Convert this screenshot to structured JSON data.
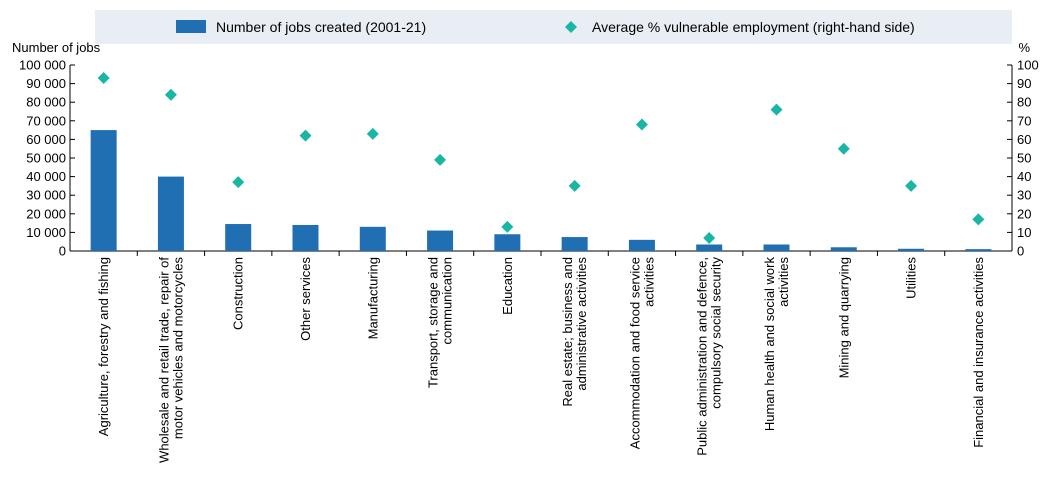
{
  "chart_data": {
    "type": "bar",
    "categories": [
      [
        "Agriculture, forestry and fishing"
      ],
      [
        "Wholesale and retail trade, repair of",
        "motor vehicles and motorcycles"
      ],
      [
        "Construction"
      ],
      [
        "Other services"
      ],
      [
        "Manufacturing"
      ],
      [
        "Transport, storage and",
        "communication"
      ],
      [
        "Education"
      ],
      [
        "Real estate; business and",
        "administrative activities"
      ],
      [
        "Accommodation and food service",
        "activities"
      ],
      [
        "Public administration and defence,",
        "compulsory social security"
      ],
      [
        "Human health and social work",
        "activities"
      ],
      [
        "Mining and quarrying"
      ],
      [
        "Utilities"
      ],
      [
        "Financial and insurance activities"
      ]
    ],
    "series": [
      {
        "name": "Number of jobs created (2001-21)",
        "type": "bar",
        "axis": "left",
        "color": "#1f6fb2",
        "values": [
          65000,
          40000,
          14500,
          14000,
          13000,
          11000,
          9000,
          7500,
          6000,
          3500,
          3500,
          2000,
          1200,
          1000
        ]
      },
      {
        "name": "Average % vulnerable employment (right-hand side)",
        "type": "scatter",
        "axis": "right",
        "color": "#19b6a6",
        "marker": "diamond",
        "values": [
          93,
          84,
          37,
          62,
          63,
          49,
          13,
          35,
          68,
          7,
          76,
          55,
          35,
          17
        ]
      }
    ],
    "ylabel": "Number of jobs",
    "ylabel_right": "%",
    "ylim": [
      0,
      100000
    ],
    "ylim_right": [
      0,
      100
    ],
    "yticks": [
      "0",
      "10 000",
      "20 000",
      "30 000",
      "40 000",
      "50 000",
      "60 000",
      "70 000",
      "80 000",
      "90 000",
      "100 000"
    ],
    "yticks_right": [
      "0",
      "10",
      "20",
      "30",
      "40",
      "50",
      "60",
      "70",
      "80",
      "90",
      "100"
    ],
    "ytick_values": [
      0,
      10000,
      20000,
      30000,
      40000,
      50000,
      60000,
      70000,
      80000,
      90000,
      100000
    ],
    "ytick_values_right": [
      0,
      10,
      20,
      30,
      40,
      50,
      60,
      70,
      80,
      90,
      100
    ],
    "grid": false,
    "legend_position": "top",
    "legend_background": "#e9edf4"
  }
}
